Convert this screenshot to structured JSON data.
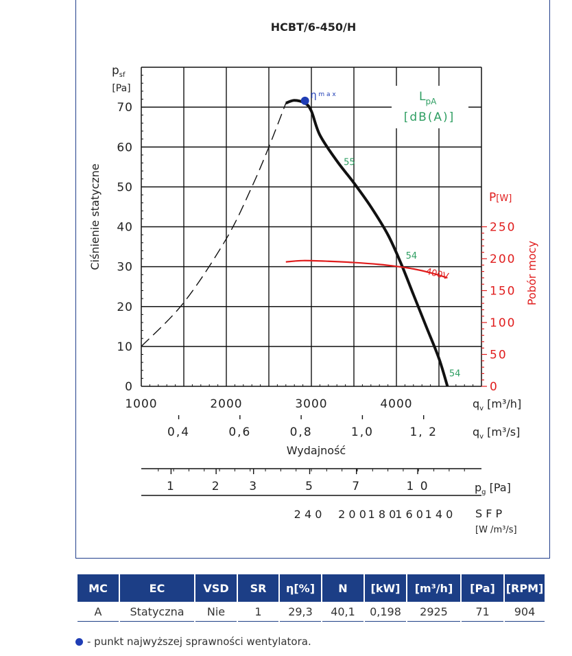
{
  "chart_data": {
    "type": "line",
    "title": "HCBT/6-450/H",
    "y_left": {
      "label": "Ciśnienie statyczne",
      "symbol": "p",
      "symbol_sub": "sf",
      "unit": "[Pa]",
      "ylim": [
        0,
        80
      ],
      "ticks": [
        "0",
        "10",
        "20",
        "30",
        "40",
        "50",
        "60",
        "70"
      ]
    },
    "y_right": {
      "label": "Pobór mocy",
      "symbol": "P",
      "unit": "[W]",
      "ylim": [
        0,
        500
      ],
      "ticks": [
        "0",
        "50",
        "100",
        "150",
        "200",
        "250"
      ]
    },
    "x_primary": {
      "label": "Wydajność",
      "symbol": "q",
      "symbol_sub": "v",
      "unit": "[m³/h]",
      "xlim": [
        1000,
        5000
      ],
      "ticks": [
        "1000",
        "2000",
        "3000",
        "4000"
      ]
    },
    "x_secondary": {
      "symbol": "q",
      "symbol_sub": "v",
      "unit": "[m³/s]",
      "ticks": [
        {
          "value": 0.4,
          "label": "0,4"
        },
        {
          "value": 0.6,
          "label": "0,6"
        },
        {
          "value": 0.8,
          "label": "0,8"
        },
        {
          "value": 1.0,
          "label": "1,0"
        },
        {
          "value": 1.2,
          "label": "1, 2"
        }
      ]
    },
    "dynamic_pressure_scale": {
      "symbol": "p",
      "symbol_sub": "g",
      "unit": "[Pa]",
      "ticks": [
        {
          "q": 1350,
          "label": "1"
        },
        {
          "q": 1880,
          "label": "2"
        },
        {
          "q": 2320,
          "label": "3"
        },
        {
          "q": 2980,
          "label": "5"
        },
        {
          "q": 3530,
          "label": "7"
        },
        {
          "q": 4250,
          "label": "1 0"
        }
      ]
    },
    "sfp_scale": {
      "symbol": "S F P",
      "unit": "[W /m³/s]",
      "ticks": [
        {
          "q": 2960,
          "label": "2 4 0"
        },
        {
          "q": 3480,
          "label": "2 0 0"
        },
        {
          "q": 3830,
          "label": "1 8 0"
        },
        {
          "q": 4150,
          "label": "1 6 0"
        },
        {
          "q": 4500,
          "label": "1 4 0"
        }
      ]
    },
    "series": [
      {
        "name": "stall",
        "axis": "left",
        "style": "dashed",
        "color": "#111111",
        "x": [
          1000,
          1500,
          2000,
          2300,
          2500,
          2700
        ],
        "y": [
          10,
          21,
          37,
          50,
          60,
          71
        ]
      },
      {
        "name": "pressure",
        "axis": "left",
        "style": "solid",
        "color": "#111111",
        "x": [
          2700,
          2800,
          2925,
          3000,
          3100,
          3300,
          3500,
          3700,
          3900,
          4050,
          4200,
          4350,
          4500,
          4600
        ],
        "y": [
          71,
          71.7,
          71,
          69,
          63,
          56.5,
          51,
          45,
          38,
          31,
          23,
          15,
          7,
          0
        ]
      },
      {
        "name": "power",
        "axis": "right",
        "style": "solid",
        "color": "#e01c1c",
        "x": [
          2700,
          2900,
          3200,
          3500,
          3800,
          4000,
          4200,
          4400,
          4600
        ],
        "y": [
          195,
          197,
          196,
          194,
          191,
          188,
          184,
          178,
          170
        ]
      }
    ],
    "eta_max": {
      "x": 2925,
      "y": 71.6,
      "label": "η",
      "label_sub": "m a x",
      "color": "#1f3db5"
    },
    "annotations": [
      {
        "text": "55",
        "x": 3380,
        "y": 55.5,
        "color": "#2e9e62"
      },
      {
        "text": "54",
        "x": 4110,
        "y": 32,
        "color": "#2e9e62"
      },
      {
        "text": "54",
        "x": 4620,
        "y": 2.5,
        "color": "#2e9e62"
      },
      {
        "text": "400V",
        "x": 4340,
        "y": 28.2,
        "color": "#e01c1c"
      }
    ],
    "noise_label": {
      "line1": "L",
      "line1_sub": "pA",
      "line2": "[dB(A)]",
      "color": "#2e9e62"
    },
    "grid": true
  },
  "table": {
    "headers": [
      "MC",
      "EC",
      "VSD",
      "SR",
      "η[%]",
      "N",
      "[kW]",
      "[m³/h]",
      "[Pa]",
      "[RPM]"
    ],
    "rows": [
      [
        "A",
        "Statyczna",
        "Nie",
        "1",
        "29,3",
        "40,1",
        "0,198",
        "2925",
        "71",
        "904"
      ]
    ]
  },
  "legend_note": "- punkt najwyższej sprawności wentylatora."
}
